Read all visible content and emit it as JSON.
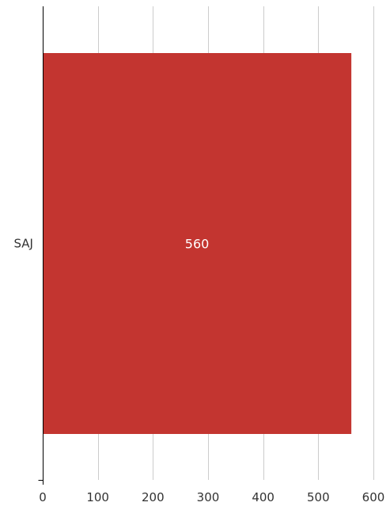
{
  "chart_data": {
    "type": "bar",
    "orientation": "horizontal",
    "categories": [
      "SAJ"
    ],
    "values": [
      560
    ],
    "title": "",
    "xlabel": "",
    "ylabel": "",
    "xlim": [
      0,
      600
    ],
    "xticks": [
      0,
      100,
      200,
      300,
      400,
      500,
      600
    ],
    "grid": true,
    "data_labels": true,
    "colors": {
      "bar": "#c33530"
    }
  }
}
